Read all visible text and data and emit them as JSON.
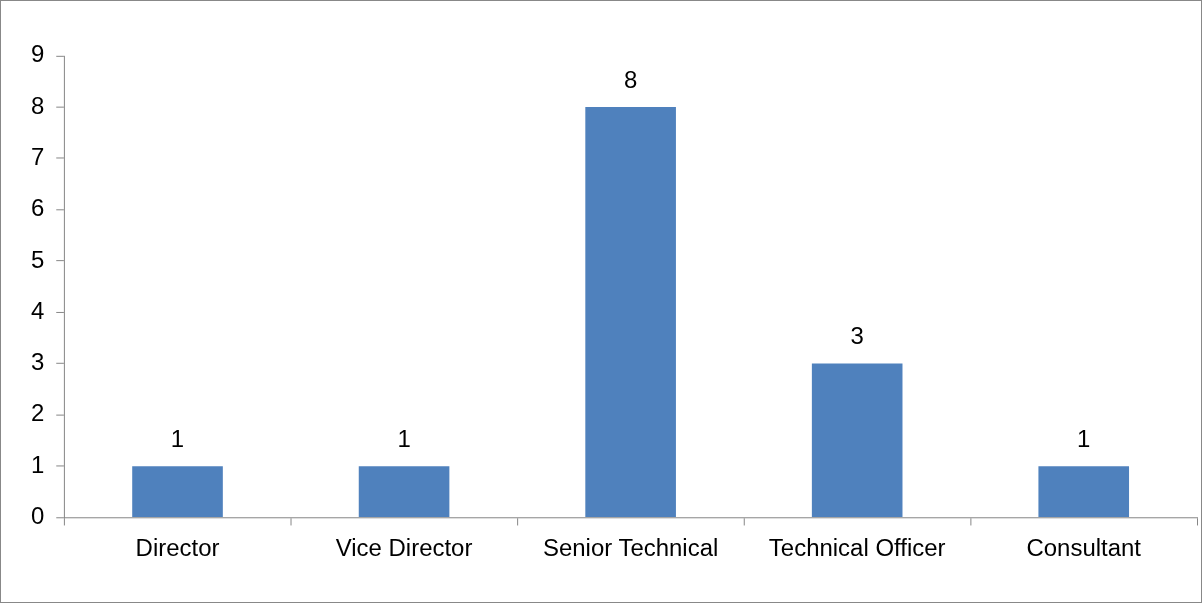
{
  "chart_data": {
    "type": "bar",
    "categories": [
      "Director",
      "Vice Director",
      "Senior Technical",
      "Technical Officer",
      "Consultant"
    ],
    "values": [
      1,
      1,
      8,
      3,
      1
    ],
    "color": "#4f81bd",
    "ylim": [
      0,
      9
    ],
    "yticks": [
      0,
      1,
      2,
      3,
      4,
      5,
      6,
      7,
      8,
      9
    ],
    "grid": false,
    "legend": false,
    "data_labels": true
  }
}
